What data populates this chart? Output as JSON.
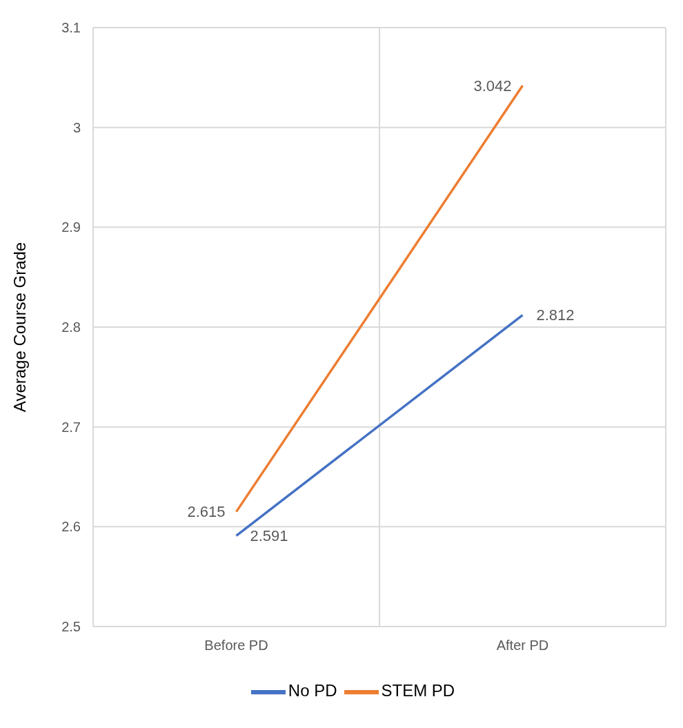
{
  "chart_data": {
    "type": "line",
    "ylabel": "Average Course Grade",
    "categories": [
      "Before PD",
      "After PD"
    ],
    "series": [
      {
        "name": "No PD",
        "color": "#4472c4",
        "values": [
          2.591,
          2.812
        ]
      },
      {
        "name": "STEM PD",
        "color": "#ed7d31",
        "values": [
          2.615,
          3.042
        ]
      }
    ],
    "ylim": [
      2.5,
      3.1
    ],
    "yticks": [
      2.5,
      2.6,
      2.7,
      2.8,
      2.9,
      3,
      3.1
    ],
    "grid": true,
    "legend": "bottom",
    "marker": "none",
    "line_style": "solid",
    "data_labels": true
  }
}
